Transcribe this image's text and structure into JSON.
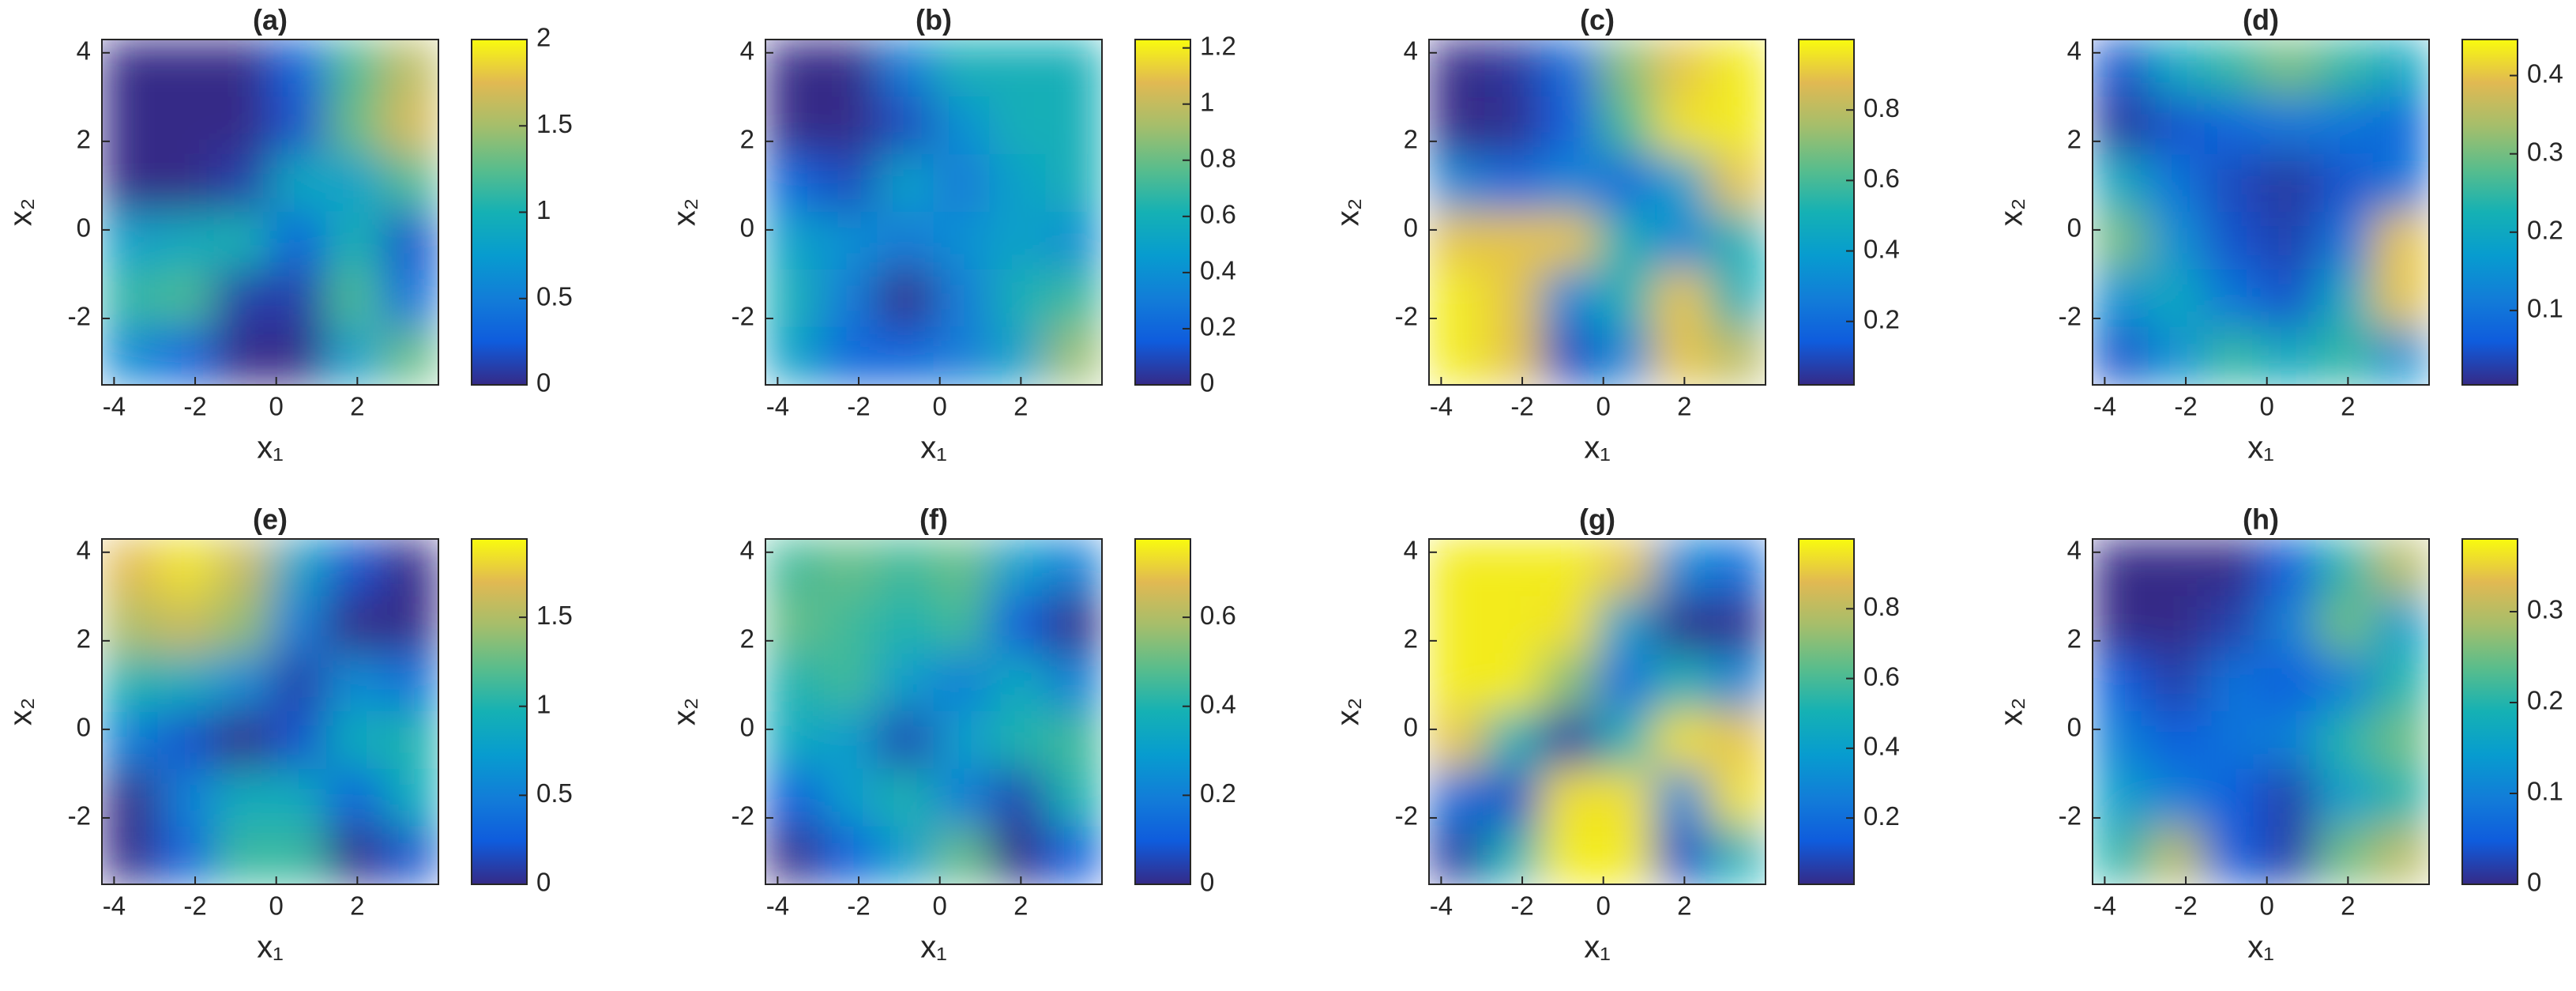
{
  "chart_data": [
    {
      "type": "contour",
      "title": "(a)",
      "xlabel": "x₁",
      "ylabel": "x₂",
      "xlim": [
        -4.3,
        4
      ],
      "ylim": [
        -3.5,
        4.3
      ],
      "xticks": [
        -4,
        -2,
        0,
        2
      ],
      "yticks": [
        -2,
        0,
        2,
        4
      ],
      "clim": [
        0,
        2
      ],
      "cticks": [
        0,
        0.5,
        1,
        1.5,
        2
      ],
      "z": [
        [
          0,
          0,
          0,
          0.3,
          1.2,
          1.6
        ],
        [
          0,
          0,
          0,
          0.2,
          1.3,
          1.7
        ],
        [
          0,
          0,
          0.1,
          0.9,
          0.8,
          1.2
        ],
        [
          0.8,
          0.9,
          1.0,
          0.3,
          1.0,
          0.2
        ],
        [
          1.1,
          1.2,
          0.1,
          0.1,
          1.2,
          0.4
        ],
        [
          0.6,
          0.3,
          0,
          0,
          0.8,
          1.3
        ]
      ]
    },
    {
      "type": "contour",
      "title": "(b)",
      "xlabel": "x₁",
      "ylabel": "x₂",
      "xlim": [
        -4.3,
        4
      ],
      "ylim": [
        -3.5,
        4.3
      ],
      "xticks": [
        -4,
        -2,
        0,
        2
      ],
      "yticks": [
        -2,
        0,
        2,
        4
      ],
      "clim": [
        0,
        1.23
      ],
      "cticks": [
        0,
        0.2,
        0.4,
        0.6,
        0.8,
        1,
        1.2
      ],
      "z": [
        [
          0,
          0,
          0.3,
          0.6,
          0.6,
          0.6
        ],
        [
          0,
          0,
          0.1,
          0.4,
          0.6,
          0.6
        ],
        [
          0.2,
          0.1,
          0.5,
          0.3,
          0.5,
          0.6
        ],
        [
          0.5,
          0.4,
          0.3,
          0.4,
          0.5,
          0.4
        ],
        [
          0.6,
          0.3,
          0,
          0.3,
          0.6,
          0.7
        ],
        [
          0.5,
          0.2,
          0.2,
          0.3,
          0.5,
          0.9
        ]
      ]
    },
    {
      "type": "contour",
      "title": "(c)",
      "xlabel": "x₁",
      "ylabel": "x₂",
      "xlim": [
        -4.3,
        4
      ],
      "ylim": [
        -3.5,
        4.3
      ],
      "xticks": [
        -4,
        -2,
        0,
        2
      ],
      "yticks": [
        -2,
        0,
        2,
        4
      ],
      "clim": [
        0.02,
        1
      ],
      "cticks": [
        0.2,
        0.4,
        0.6,
        0.8
      ],
      "z": [
        [
          0.02,
          0.05,
          0.2,
          0.7,
          0.9,
          0.97
        ],
        [
          0.02,
          0.03,
          0.15,
          0.6,
          0.95,
          0.97
        ],
        [
          0.3,
          0.2,
          0.3,
          0.2,
          0.4,
          0.9
        ],
        [
          0.9,
          0.9,
          0.9,
          0.5,
          0.3,
          0.5
        ],
        [
          0.97,
          0.9,
          0.3,
          0.5,
          0.9,
          0.5
        ],
        [
          0.97,
          0.9,
          0.1,
          0.3,
          0.9,
          0.8
        ]
      ]
    },
    {
      "type": "contour",
      "title": "(d)",
      "xlabel": "x₁",
      "ylabel": "x₂",
      "xlim": [
        -4.3,
        4
      ],
      "ylim": [
        -3.5,
        4.3
      ],
      "xticks": [
        -4,
        -2,
        0,
        2
      ],
      "yticks": [
        -2,
        0,
        2,
        4
      ],
      "clim": [
        0.005,
        0.446
      ],
      "cticks": [
        0.1,
        0.2,
        0.3,
        0.4
      ],
      "z": [
        [
          0.05,
          0.2,
          0.25,
          0.3,
          0.25,
          0.2
        ],
        [
          0.02,
          0.05,
          0.08,
          0.1,
          0.1,
          0.08
        ],
        [
          0.2,
          0.1,
          0.04,
          0.02,
          0.05,
          0.1
        ],
        [
          0.3,
          0.15,
          0.05,
          0.03,
          0.1,
          0.4
        ],
        [
          0.15,
          0.2,
          0.1,
          0.05,
          0.2,
          0.4
        ],
        [
          0.05,
          0.15,
          0.25,
          0.2,
          0.25,
          0.15
        ]
      ]
    },
    {
      "type": "contour",
      "title": "(e)",
      "xlabel": "x₁",
      "ylabel": "x₂",
      "xlim": [
        -4.3,
        4
      ],
      "ylim": [
        -3.5,
        4.3
      ],
      "xticks": [
        -4,
        -2,
        0,
        2
      ],
      "yticks": [
        -2,
        0,
        2,
        4
      ],
      "clim": [
        0,
        1.94
      ],
      "cticks": [
        0,
        0.5,
        1,
        1.5
      ],
      "z": [
        [
          1.7,
          1.85,
          1.6,
          0.8,
          0.2,
          0
        ],
        [
          1.5,
          1.6,
          1.4,
          0.5,
          0,
          0
        ],
        [
          1.0,
          0.9,
          0.6,
          0.1,
          0.6,
          0.4
        ],
        [
          0.5,
          0.2,
          0,
          0.2,
          0.9,
          1.0
        ],
        [
          0,
          0.5,
          0.9,
          0.9,
          0.3,
          0.9
        ],
        [
          0,
          0.3,
          1.1,
          1.1,
          0,
          0.2
        ]
      ]
    },
    {
      "type": "contour",
      "title": "(f)",
      "xlabel": "x₁",
      "ylabel": "x₂",
      "xlim": [
        -4.3,
        4
      ],
      "ylim": [
        -3.5,
        4.3
      ],
      "xticks": [
        -4,
        -2,
        0,
        2
      ],
      "yticks": [
        -2,
        0,
        2,
        4
      ],
      "clim": [
        0,
        0.776
      ],
      "cticks": [
        0,
        0.2,
        0.4,
        0.6
      ],
      "z": [
        [
          0.45,
          0.5,
          0.45,
          0.5,
          0.3,
          0.2
        ],
        [
          0.5,
          0.45,
          0.4,
          0.45,
          0.1,
          0
        ],
        [
          0.4,
          0.45,
          0.3,
          0.2,
          0.35,
          0.2
        ],
        [
          0.35,
          0.3,
          0.05,
          0.3,
          0.4,
          0.45
        ],
        [
          0.1,
          0.3,
          0.4,
          0.2,
          0.05,
          0.4
        ],
        [
          0,
          0.1,
          0.3,
          0.5,
          0,
          0.1
        ]
      ]
    },
    {
      "type": "contour",
      "title": "(g)",
      "xlabel": "x₁",
      "ylabel": "x₂",
      "xlim": [
        -4.3,
        4
      ],
      "ylim": [
        -3.5,
        4.3
      ],
      "xticks": [
        -4,
        -2,
        0,
        2
      ],
      "yticks": [
        -2,
        0,
        2,
        4
      ],
      "clim": [
        0.01,
        1
      ],
      "cticks": [
        0.2,
        0.4,
        0.6,
        0.8
      ],
      "z": [
        [
          0.97,
          0.97,
          0.97,
          0.9,
          0.3,
          0.2
        ],
        [
          0.97,
          0.97,
          0.95,
          0.4,
          0.02,
          0.02
        ],
        [
          0.97,
          0.97,
          0.7,
          0.2,
          0.5,
          0.3
        ],
        [
          0.9,
          0.5,
          0.05,
          0.5,
          0.95,
          0.9
        ],
        [
          0.2,
          0.1,
          0.95,
          0.95,
          0.3,
          0.95
        ],
        [
          0.05,
          0.5,
          0.97,
          0.97,
          0.1,
          0.5
        ]
      ]
    },
    {
      "type": "contour",
      "title": "(h)",
      "xlabel": "x₁",
      "ylabel": "x₂",
      "xlim": [
        -4.3,
        4
      ],
      "ylim": [
        -3.5,
        4.3
      ],
      "xticks": [
        -4,
        -2,
        0,
        2
      ],
      "yticks": [
        -2,
        0,
        2,
        4
      ],
      "clim": [
        0,
        0.38
      ],
      "cticks": [
        0,
        0.1,
        0.2,
        0.3
      ],
      "z": [
        [
          0,
          0,
          0,
          0.05,
          0.2,
          0.3
        ],
        [
          0,
          0,
          0.02,
          0.1,
          0.25,
          0.15
        ],
        [
          0.05,
          0.02,
          0.08,
          0.05,
          0.1,
          0.2
        ],
        [
          0.1,
          0.05,
          0.08,
          0.1,
          0.2,
          0.25
        ],
        [
          0.15,
          0.1,
          0.05,
          0.02,
          0.15,
          0.2
        ],
        [
          0.2,
          0.3,
          0.05,
          0.02,
          0.25,
          0.3
        ]
      ]
    }
  ]
}
